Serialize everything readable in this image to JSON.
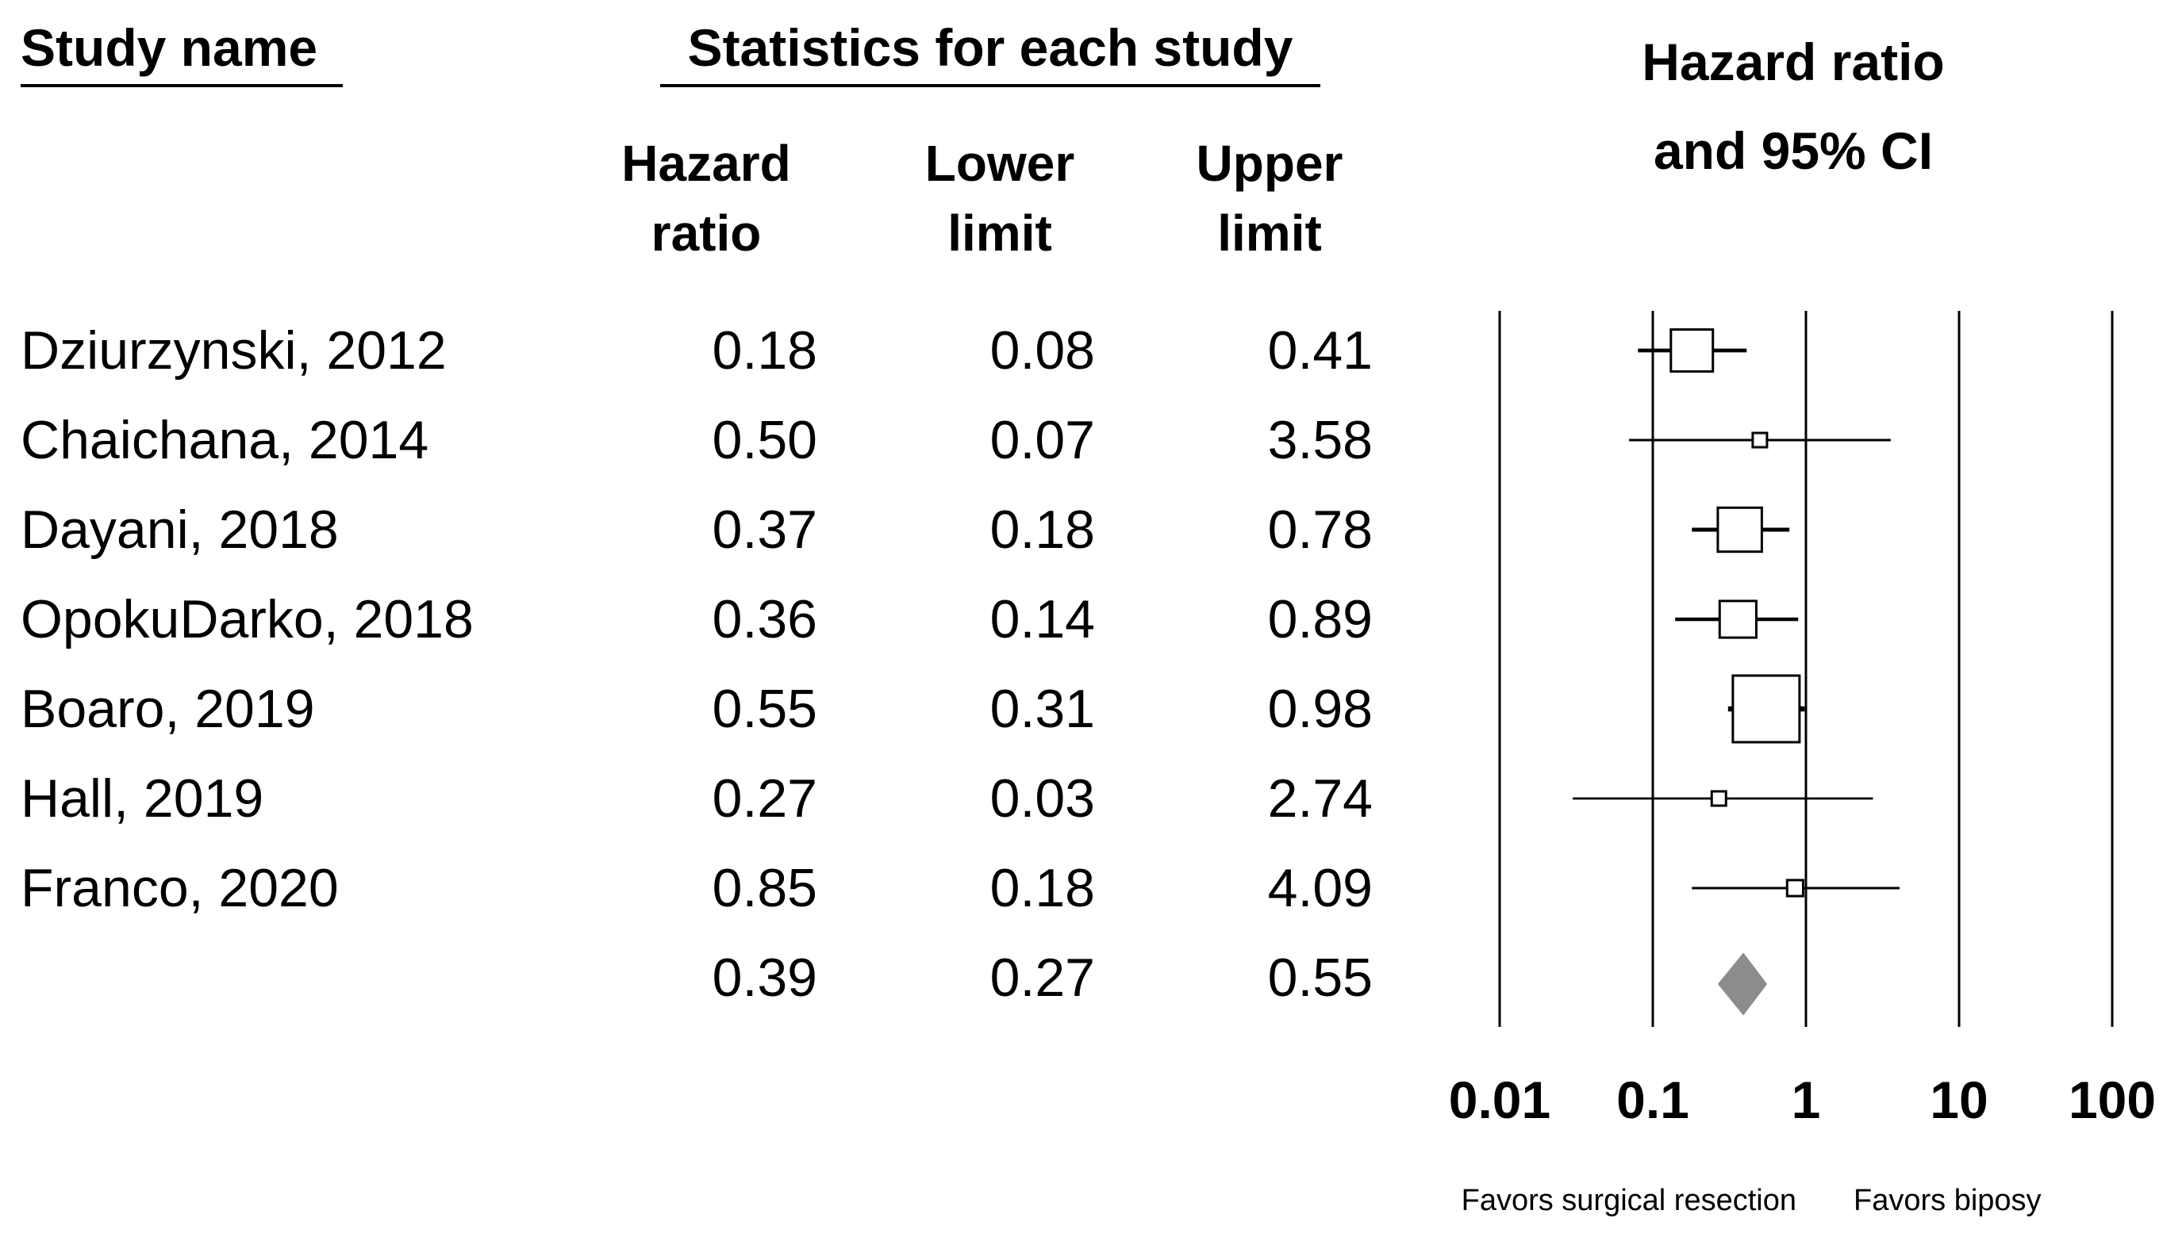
{
  "headers": {
    "study_name": "Study name",
    "statistics": "Statistics for each study",
    "plot_title_line1": "Hazard ratio",
    "plot_title_line2": "and 95% CI",
    "hr_line1": "Hazard",
    "hr_line2": "ratio",
    "lower_line1": "Lower",
    "lower_line2": "limit",
    "upper_line1": "Upper",
    "upper_line2": "limit"
  },
  "rows": [
    {
      "name": "Dziurzynski, 2012",
      "hr": "0.18",
      "lower": "0.08",
      "upper": "0.41"
    },
    {
      "name": "Chaichana, 2014",
      "hr": "0.50",
      "lower": "0.07",
      "upper": "3.58"
    },
    {
      "name": "Dayani, 2018",
      "hr": "0.37",
      "lower": "0.18",
      "upper": "0.78"
    },
    {
      "name": "OpokuDarko, 2018",
      "hr": "0.36",
      "lower": "0.14",
      "upper": "0.89"
    },
    {
      "name": "Boaro, 2019",
      "hr": "0.55",
      "lower": "0.31",
      "upper": "0.98"
    },
    {
      "name": "Hall, 2019",
      "hr": "0.27",
      "lower": "0.03",
      "upper": "2.74"
    },
    {
      "name": "Franco, 2020",
      "hr": "0.85",
      "lower": "0.18",
      "upper": "4.09"
    }
  ],
  "summary": {
    "hr": "0.39",
    "lower": "0.27",
    "upper": "0.55"
  },
  "chart_data": {
    "type": "forest",
    "scale": "log",
    "xlim": [
      0.01,
      100
    ],
    "tick_values": [
      0.01,
      0.1,
      1,
      10,
      100
    ],
    "tick_labels": [
      "0.01",
      "0.1",
      "1",
      "10",
      "100"
    ],
    "footnote_left": "Favors surgical resection",
    "footnote_right": "Favors biposy",
    "studies": [
      {
        "hr": 0.18,
        "lower": 0.08,
        "upper": 0.41,
        "weight": 0.63
      },
      {
        "hr": 0.5,
        "lower": 0.07,
        "upper": 3.58,
        "weight": 0.2
      },
      {
        "hr": 0.37,
        "lower": 0.18,
        "upper": 0.78,
        "weight": 0.66
      },
      {
        "hr": 0.36,
        "lower": 0.14,
        "upper": 0.89,
        "weight": 0.55
      },
      {
        "hr": 0.55,
        "lower": 0.31,
        "upper": 0.98,
        "weight": 1.0
      },
      {
        "hr": 0.27,
        "lower": 0.03,
        "upper": 2.74,
        "weight": 0.18
      },
      {
        "hr": 0.85,
        "lower": 0.18,
        "upper": 4.09,
        "weight": 0.24
      }
    ],
    "summary": {
      "hr": 0.39,
      "lower": 0.27,
      "upper": 0.55
    },
    "summary_color": "#8c8c8c"
  }
}
